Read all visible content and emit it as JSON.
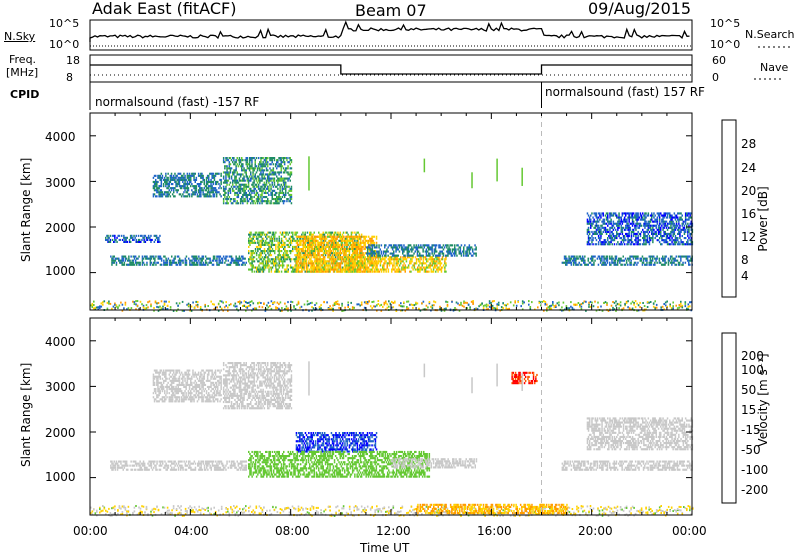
{
  "header": {
    "station": "Adak East (fitACF)",
    "beam": "Beam 07",
    "date": "09/Aug/2015"
  },
  "top_panels": {
    "nsky_label": "N.Sky",
    "nsearch_label": "N.Search",
    "noise_ticks_left": [
      "10^5",
      "10^0"
    ],
    "noise_ticks_right": [
      "10^5",
      "10^0"
    ],
    "freq_label_line1": "Freq.",
    "freq_label_line2": "[MHz]",
    "freq_ticks": [
      "18",
      "8"
    ],
    "nave_label": "Nave",
    "nave_ticks": [
      "60",
      "0"
    ],
    "cpid_label": "CPID",
    "cpid_left": "normalsound (fast) -157 RF",
    "cpid_right": "normalsound (fast) 157 RF"
  },
  "chart_data": [
    {
      "type": "heatmap",
      "panel": "power",
      "ylabel": "Slant Range [km]",
      "xlabel": "",
      "yticks": [
        "1000",
        "2000",
        "3000",
        "4000"
      ],
      "xlim": [
        "00:00",
        "24:00"
      ],
      "ylim": [
        180,
        4500
      ],
      "colorbar_label": "Power [dB]",
      "colorbar_ticks": [
        "28",
        "24",
        "20",
        "16",
        "12",
        "8",
        "4"
      ],
      "colorbar_colors": [
        "#ff0000",
        "#ff5a00",
        "#ff9a00",
        "#ffd200",
        "#64c832",
        "#1e8c64",
        "#1e64c8",
        "#0000ff"
      ],
      "regions": [
        {
          "t_start": 2.5,
          "t_end": 5.2,
          "r_start": 2650,
          "r_end": 3150,
          "level": 8
        },
        {
          "t_start": 0.8,
          "t_end": 6.2,
          "r_start": 1150,
          "r_end": 1350,
          "level": 8
        },
        {
          "t_start": 0.6,
          "t_end": 2.8,
          "r_start": 1650,
          "r_end": 1800,
          "level": 6
        },
        {
          "t_start": 5.3,
          "t_end": 8.0,
          "r_start": 2500,
          "r_end": 3500,
          "level": 10
        },
        {
          "t_start": 6.3,
          "t_end": 10.8,
          "r_start": 1000,
          "r_end": 1900,
          "level": 14
        },
        {
          "t_start": 8.2,
          "t_end": 11.4,
          "r_start": 1000,
          "r_end": 1800,
          "level": 20
        },
        {
          "t_start": 10.2,
          "t_end": 14.2,
          "r_start": 1000,
          "r_end": 1350,
          "level": 18
        },
        {
          "t_start": 11.0,
          "t_end": 15.4,
          "r_start": 1350,
          "r_end": 1600,
          "level": 8
        },
        {
          "t_start": 18.8,
          "t_end": 24.0,
          "r_start": 1150,
          "r_end": 1350,
          "level": 8
        },
        {
          "t_start": 19.8,
          "t_end": 24.0,
          "r_start": 1600,
          "r_end": 2300,
          "level": 6
        }
      ]
    },
    {
      "type": "heatmap",
      "panel": "velocity",
      "ylabel": "Slant Range [km]",
      "xlabel": "Time UT",
      "yticks": [
        "1000",
        "2000",
        "3000",
        "4000"
      ],
      "xticks": [
        "00:00",
        "04:00",
        "08:00",
        "12:00",
        "16:00",
        "20:00",
        "00:00"
      ],
      "xlim": [
        "00:00",
        "24:00"
      ],
      "ylim": [
        180,
        4500
      ],
      "colorbar_label": "Velocity [m s⁻¹]",
      "colorbar_ticks": [
        "200",
        "100",
        "50",
        "15",
        "-15",
        "-50",
        "-100",
        "-200"
      ],
      "colorbar_colors": [
        "#0000ff",
        "#1e64c8",
        "#1e8c64",
        "#64c832",
        "#c8c8c8",
        "#ffd200",
        "#ff9a00",
        "#ff5a00",
        "#ff0000"
      ],
      "regions": [
        {
          "t_start": 2.5,
          "t_end": 5.2,
          "r_start": 2650,
          "r_end": 3350,
          "vel": 0
        },
        {
          "t_start": 0.8,
          "t_end": 6.2,
          "r_start": 1150,
          "r_end": 1350,
          "vel": 0
        },
        {
          "t_start": 5.3,
          "t_end": 8.0,
          "r_start": 2500,
          "r_end": 3500,
          "vel": 0
        },
        {
          "t_start": 8.2,
          "t_end": 11.4,
          "r_start": 1550,
          "r_end": 2000,
          "vel": 200
        },
        {
          "t_start": 6.3,
          "t_end": 13.5,
          "r_start": 1000,
          "r_end": 1550,
          "vel": 30
        },
        {
          "t_start": 12.0,
          "t_end": 15.4,
          "r_start": 1200,
          "r_end": 1400,
          "vel": 0
        },
        {
          "t_start": 16.8,
          "t_end": 17.8,
          "r_start": 3050,
          "r_end": 3300,
          "vel": -200
        },
        {
          "t_start": 13.0,
          "t_end": 19.0,
          "r_start": 200,
          "r_end": 420,
          "vel": -50
        },
        {
          "t_start": 18.8,
          "t_end": 24.0,
          "r_start": 1150,
          "r_end": 1350,
          "vel": 0
        },
        {
          "t_start": 19.8,
          "t_end": 24.0,
          "r_start": 1600,
          "r_end": 2300,
          "vel": 0
        }
      ]
    }
  ]
}
